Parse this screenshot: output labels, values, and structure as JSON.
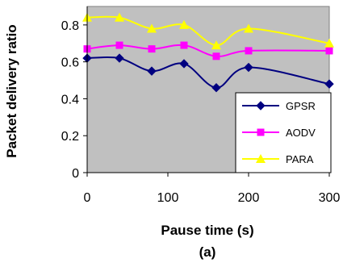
{
  "chart_data": {
    "type": "line",
    "xlabel": "Pause time (s)",
    "ylabel": "Packet delivery ratio",
    "caption": "(a)",
    "xlim": [
      0,
      300
    ],
    "ylim": [
      0,
      0.9
    ],
    "x_ticks": [
      "0",
      "100",
      "200",
      "300"
    ],
    "y_ticks": [
      "0",
      "0.2",
      "0.4",
      "0.6",
      "0.8"
    ],
    "x": [
      0,
      40,
      80,
      120,
      160,
      200,
      300
    ],
    "grid": false,
    "legend_position": "bottom-right",
    "plot_background": "#c0c0c0",
    "series": [
      {
        "name": "GPSR",
        "color": "#000080",
        "marker": "diamond",
        "values": [
          0.62,
          0.62,
          0.55,
          0.59,
          0.46,
          0.57,
          0.48
        ]
      },
      {
        "name": "AODV",
        "color": "#ff00ff",
        "marker": "square",
        "values": [
          0.67,
          0.69,
          0.67,
          0.69,
          0.63,
          0.66,
          0.66
        ]
      },
      {
        "name": "PARA",
        "color": "#ffff00",
        "marker": "triangle",
        "values": [
          0.84,
          0.84,
          0.78,
          0.8,
          0.69,
          0.78,
          0.7
        ]
      }
    ]
  }
}
